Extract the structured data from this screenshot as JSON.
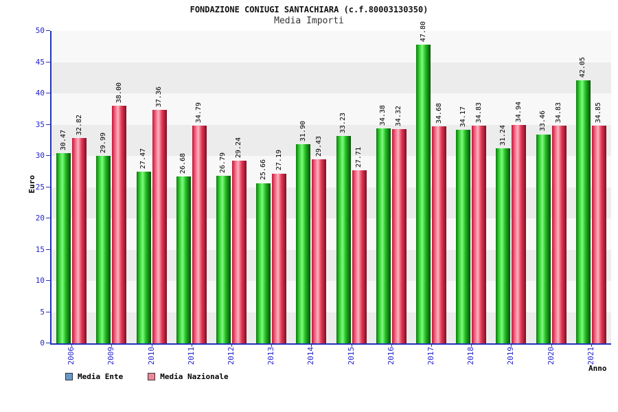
{
  "title": "FONDAZIONE CONIUGI SANTACHIARA (c.f.80003130350)",
  "subtitle": "Media Importi",
  "chart_data": {
    "type": "bar",
    "categories": [
      "2006",
      "2009",
      "2010",
      "2011",
      "2012",
      "2013",
      "2014",
      "2015",
      "2016",
      "2017",
      "2018",
      "2019",
      "2020",
      "2021"
    ],
    "series": [
      {
        "name": "Media Ente",
        "legend_color": "#6699cc",
        "bar_color": "#33cc33",
        "values": [
          30.47,
          29.99,
          27.47,
          26.68,
          26.79,
          25.66,
          31.9,
          33.23,
          34.38,
          47.8,
          34.17,
          31.24,
          33.46,
          42.05
        ]
      },
      {
        "name": "Media Nazionale",
        "legend_color": "#ee8899",
        "bar_color": "#ee3355",
        "values": [
          32.82,
          38.0,
          37.36,
          34.79,
          29.24,
          27.19,
          29.43,
          27.71,
          34.32,
          34.68,
          34.83,
          34.94,
          34.83,
          34.85
        ]
      }
    ],
    "title": "FONDAZIONE CONIUGI SANTACHIARA (c.f.80003130350)",
    "subtitle": "Media Importi",
    "xlabel": "Anno",
    "ylabel": "Euro",
    "ylim": [
      0,
      50
    ],
    "ytick_step": 5,
    "grid": "banded",
    "legend_position": "bottom-left",
    "value_label_format": "2-decimals",
    "label_rotation": "vertical"
  },
  "colors": {
    "axis": "#2233bb",
    "tick_text": "#2222cc",
    "band_gray": "#ececec",
    "band_light": "#f8f8f8",
    "value_text": "#000000"
  }
}
